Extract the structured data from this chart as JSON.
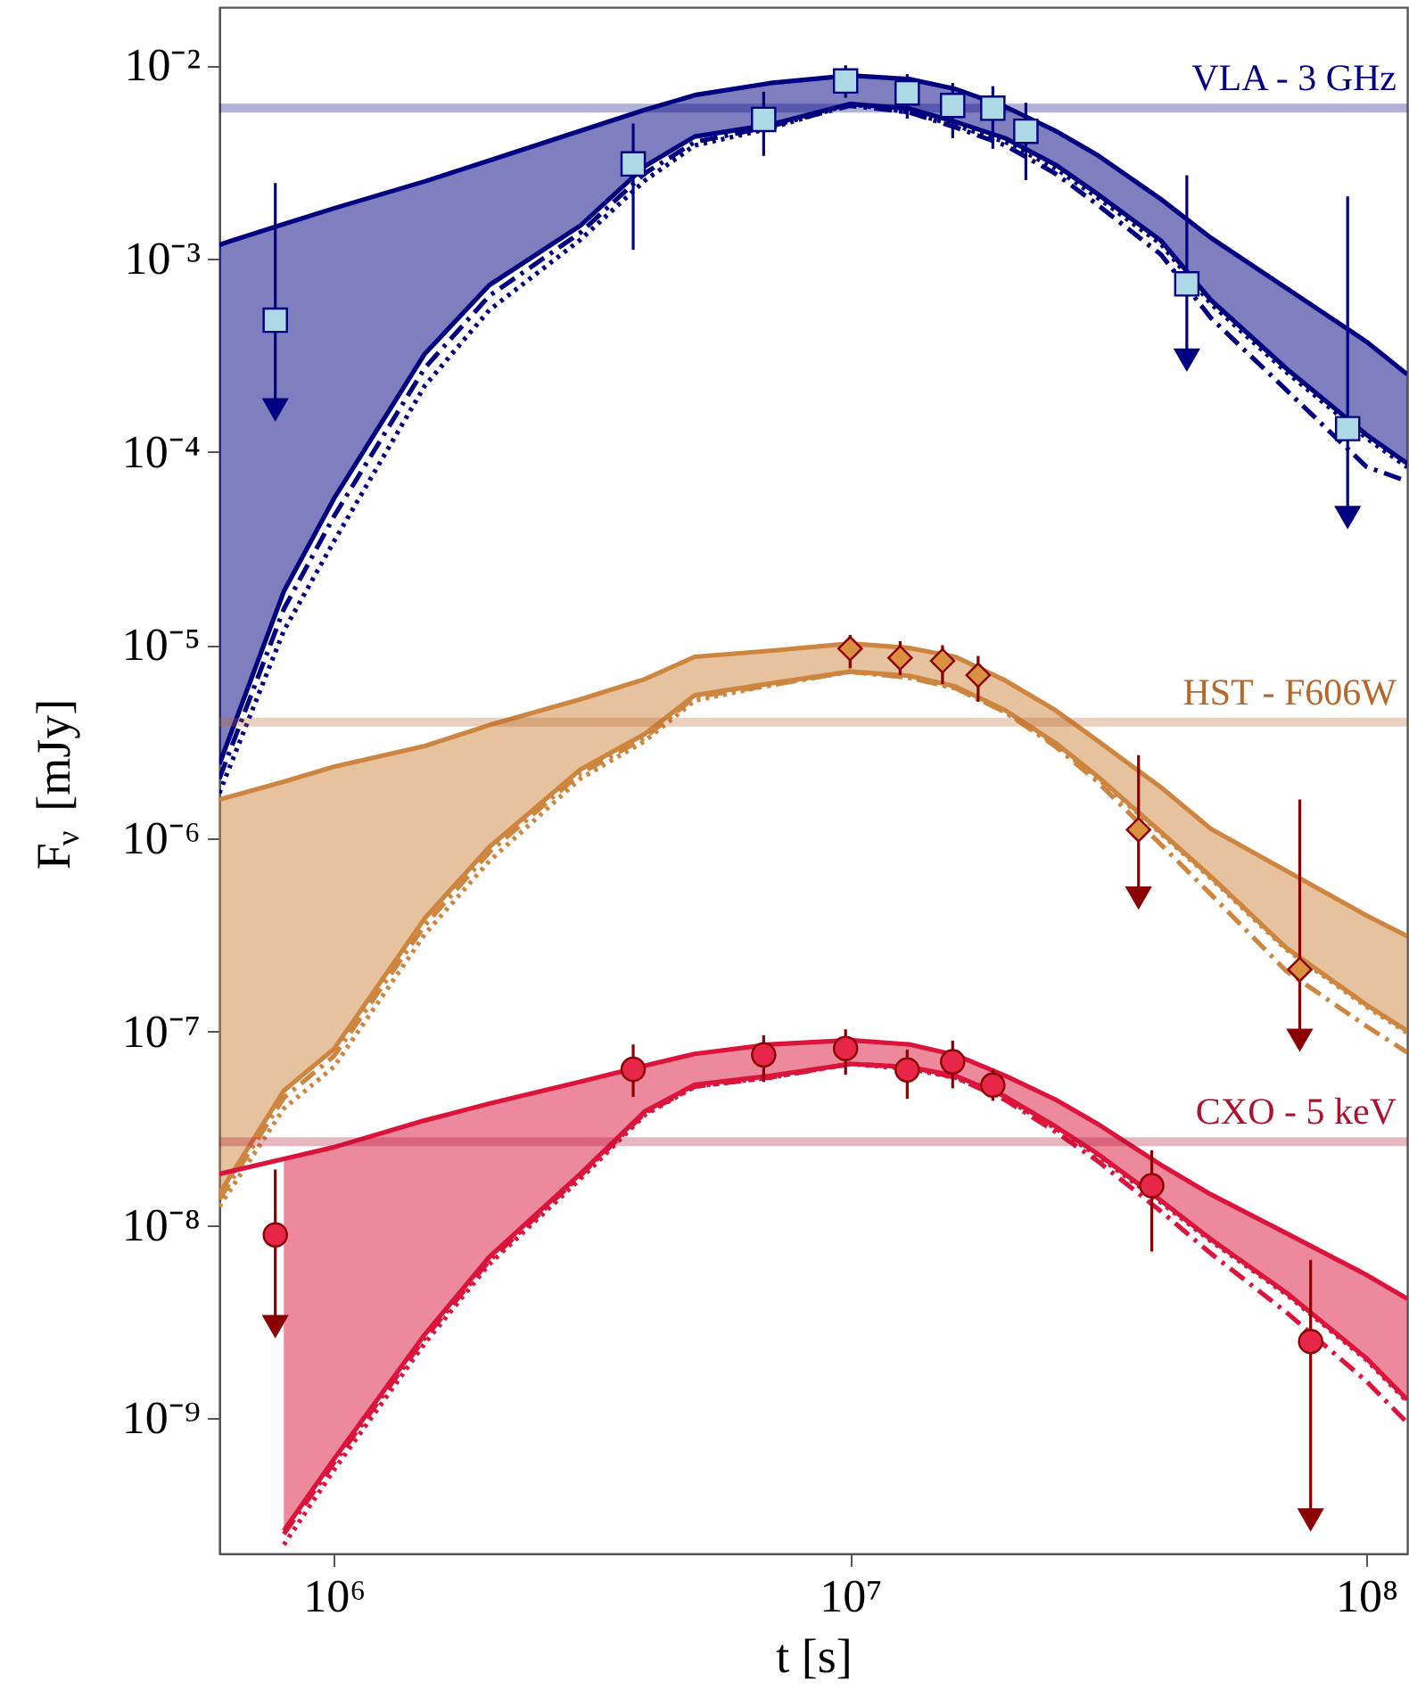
{
  "chart_data": {
    "type": "line",
    "xlabel": "t [s]",
    "ylabel": "F$_{ν}$ [mJy]",
    "log": "xy",
    "xlim": [
      600000,
      120000000
    ],
    "ylim": [
      2e-10,
      0.02
    ],
    "xticks": [
      {
        "value": 1000000,
        "label": "10⁶"
      },
      {
        "value": 10000000,
        "label": "10⁷"
      },
      {
        "value": 100000000,
        "label": "10⁸"
      }
    ],
    "yticks": [
      {
        "value": 1e-09,
        "label": "10⁻⁹"
      },
      {
        "value": 1e-08,
        "label": "10⁻⁸"
      },
      {
        "value": 1e-07,
        "label": "10⁻⁷"
      },
      {
        "value": 1e-06,
        "label": "10⁻⁶"
      },
      {
        "value": 1e-05,
        "label": "10⁻⁵"
      },
      {
        "value": 0.0001,
        "label": "10⁻⁴"
      },
      {
        "value": 0.001,
        "label": "10⁻³"
      },
      {
        "value": 0.01,
        "label": "10⁻²"
      }
    ],
    "x": [
      600000,
      800000,
      1000000,
      1500000,
      2000000,
      3000000,
      4000000,
      5000000,
      7000000,
      10000000,
      13000000,
      16000000,
      20000000,
      25000000,
      30000000,
      40000000,
      50000000,
      70000000,
      100000000,
      120000000
    ],
    "ref_lines": [
      {
        "axis": "y",
        "value": 0.006,
        "label": "VLA - 3 GHz",
        "color": "#000080"
      },
      {
        "axis": "y",
        "value": 4e-06,
        "label": "HST - F606W",
        "color": "#b8662a"
      },
      {
        "axis": "y",
        "value": 2.7e-08,
        "label": "CXO - 5 keV",
        "color": "#b01030"
      }
    ],
    "series": [
      {
        "color": "#000080",
        "line_style": "solid",
        "values": [
          0.00118,
          0.00151,
          0.00182,
          0.00251,
          0.00322,
          0.00458,
          0.00588,
          0.00701,
          0.00809,
          0.00886,
          0.00849,
          0.00754,
          0.0061,
          0.00458,
          0.00346,
          0.00203,
          0.00128,
          0.000703,
          0.000372,
          0.000252
        ]
      },
      {
        "color": "#000080",
        "line_style": "solid",
        "values": [
          2.42e-06,
          1.9e-05,
          5.73e-05,
          0.000322,
          0.000729,
          0.00148,
          0.003,
          0.00428,
          0.00493,
          0.00631,
          0.00597,
          0.0051,
          0.00419,
          0.00306,
          0.00218,
          0.00124,
          0.00061,
          0.00027,
          0.000123,
          8.71e-05
        ],
        "lower": [
          2.42e-06,
          1.9e-05,
          5.73e-05,
          0.000322,
          0.000729,
          0.00148,
          0.003,
          0.00428,
          0.00493,
          0.00631,
          0.00597,
          0.0051,
          0.00419,
          0.00306,
          0.00218,
          0.00124,
          0.00061,
          0.00027,
          0.000123,
          8.71e-05
        ],
        "upper": [
          0.00118,
          0.00151,
          0.00182,
          0.00251,
          0.00322,
          0.00458,
          0.00588,
          0.00701,
          0.00809,
          0.00886,
          0.00849,
          0.00754,
          0.0061,
          0.00458,
          0.00346,
          0.00203,
          0.00128,
          0.000703,
          0.000372,
          0.000252
        ]
      },
      {
        "color": "#000080",
        "line_style": "dashdot",
        "values": [
          2.04e-06,
          1.54e-05,
          4.64e-05,
          0.000272,
          0.000642,
          0.00136,
          0.00276,
          0.00401,
          0.00483,
          0.00618,
          0.00572,
          0.00478,
          0.00385,
          0.00275,
          0.00192,
          0.00105,
          0.000493,
          0.000209,
          8.39e-05,
          7.05e-05
        ]
      },
      {
        "color": "#000080",
        "line_style": "dotted",
        "values": [
          1.72e-06,
          1.19e-05,
          3.44e-05,
          0.00022,
          0.000542,
          0.00125,
          0.00253,
          0.00385,
          0.00472,
          0.00631,
          0.00572,
          0.00489,
          0.00401,
          0.00293,
          0.00209,
          0.00119,
          0.000584,
          0.000259,
          0.000118,
          8.34e-05
        ]
      },
      {
        "color": "#cd853f",
        "line_style": "solid",
        "values": [
          1.59e-06,
          1.97e-06,
          2.35e-06,
          3.01e-06,
          3.86e-06,
          5.24e-06,
          6.67e-06,
          8.71e-06,
          9.36e-06,
          1.02e-05,
          9.68e-06,
          8.71e-06,
          6.56e-06,
          4.6e-06,
          3.24e-06,
          1.84e-06,
          1.12e-06,
          6.81e-07,
          4e-07,
          3.13e-07
        ]
      },
      {
        "color": "#cd853f",
        "line_style": "solid",
        "values": [
          1.45e-08,
          4.96e-08,
          8.14e-08,
          3.87e-07,
          9.05e-07,
          2.27e-06,
          3.47e-06,
          5.51e-06,
          6.34e-06,
          7.3e-06,
          6.95e-06,
          6.12e-06,
          4.6e-06,
          3.12e-06,
          2.12e-06,
          1.08e-06,
          6.35e-07,
          2.72e-07,
          1.38e-07,
          1.01e-07
        ],
        "lower": [
          1.45e-08,
          4.96e-08,
          8.14e-08,
          3.87e-07,
          9.05e-07,
          2.27e-06,
          3.47e-06,
          5.51e-06,
          6.34e-06,
          7.3e-06,
          6.95e-06,
          6.12e-06,
          4.6e-06,
          3.12e-06,
          2.12e-06,
          1.08e-06,
          6.35e-07,
          2.72e-07,
          1.38e-07,
          1.01e-07
        ],
        "upper": [
          1.59e-06,
          1.97e-06,
          2.35e-06,
          3.01e-06,
          3.86e-06,
          5.24e-06,
          6.67e-06,
          8.71e-06,
          9.36e-06,
          1.02e-05,
          9.68e-06,
          8.71e-06,
          6.56e-06,
          4.6e-06,
          3.24e-06,
          1.84e-06,
          1.12e-06,
          6.81e-07,
          4e-07,
          3.13e-07
        ]
      },
      {
        "color": "#cd853f",
        "line_style": "dashdot",
        "values": [
          1.36e-08,
          4.56e-08,
          7.48e-08,
          3.56e-07,
          8.49e-07,
          2.17e-06,
          3.32e-06,
          5.39e-06,
          6.21e-06,
          7.3e-06,
          6.8e-06,
          5.99e-06,
          4.5e-06,
          2.99e-06,
          1.99e-06,
          9.31e-07,
          5.14e-07,
          2.06e-07,
          1.07e-07,
          7.83e-08
        ]
      },
      {
        "color": "#cd853f",
        "line_style": "dotted",
        "values": [
          1.25e-08,
          4.01e-08,
          6.59e-08,
          3.2e-07,
          7.64e-07,
          2.04e-06,
          3.19e-06,
          5.17e-06,
          6.21e-06,
          7.3e-06,
          6.8e-06,
          5.99e-06,
          4.5e-06,
          3.05e-06,
          2.08e-06,
          1.06e-06,
          6.22e-07,
          2.66e-07,
          1.35e-07,
          9.89e-08
        ]
      },
      {
        "color": "#dc143c",
        "line_style": "solid",
        "values": [
          1.84e-08,
          2.2e-08,
          2.53e-08,
          3.48e-08,
          4.25e-08,
          5.52e-08,
          6.68e-08,
          7.69e-08,
          8.61e-08,
          9.06e-08,
          8.61e-08,
          7.59e-08,
          5.92e-08,
          4.46e-08,
          3.37e-08,
          2.05e-08,
          1.44e-08,
          9.08e-09,
          5.53e-09,
          4.16e-09
        ]
      },
      {
        "color": "#dc143c",
        "line_style": "solid",
        "values": [
          null,
          2.63e-10,
          6.15e-10,
          2.72e-09,
          6.84e-09,
          1.84e-08,
          3.87e-08,
          5.32e-08,
          5.92e-08,
          6.82e-08,
          6.58e-08,
          5.92e-08,
          4.62e-08,
          3.24e-08,
          2.36e-08,
          1.34e-08,
          8.45e-09,
          4.47e-09,
          2.05e-09,
          1.25e-09
        ],
        "lower": [
          null,
          2.63e-10,
          6.15e-10,
          2.72e-09,
          6.84e-09,
          1.84e-08,
          3.87e-08,
          5.32e-08,
          5.92e-08,
          6.82e-08,
          6.58e-08,
          5.92e-08,
          4.62e-08,
          3.24e-08,
          2.36e-08,
          1.34e-08,
          8.45e-09,
          4.47e-09,
          2.05e-09,
          1.25e-09
        ],
        "upper": [
          null,
          2.2e-08,
          2.53e-08,
          3.48e-08,
          4.25e-08,
          5.52e-08,
          6.68e-08,
          7.69e-08,
          8.61e-08,
          9.06e-08,
          8.61e-08,
          7.59e-08,
          5.92e-08,
          4.46e-08,
          3.37e-08,
          2.05e-08,
          1.44e-08,
          9.08e-09,
          5.53e-09,
          4.16e-09
        ]
      },
      {
        "color": "#dc143c",
        "line_style": "dashdot",
        "values": [
          null,
          2.52e-10,
          5.89e-10,
          2.61e-09,
          6.55e-09,
          1.8e-08,
          3.79e-08,
          5.21e-08,
          5.8e-08,
          6.82e-08,
          6.58e-08,
          5.8e-08,
          4.43e-08,
          3.04e-08,
          2.17e-08,
          1.18e-08,
          7.13e-09,
          3.54e-09,
          1.56e-09,
          9.49e-10
        ]
      },
      {
        "color": "#dc143c",
        "line_style": "dotted",
        "values": [
          null,
          2.22e-10,
          5.41e-10,
          2.45e-09,
          6.29e-09,
          1.73e-08,
          3.71e-08,
          5.21e-08,
          5.8e-08,
          6.82e-08,
          6.44e-08,
          5.8e-08,
          4.52e-08,
          3.17e-08,
          2.31e-08,
          1.31e-08,
          8.27e-09,
          4.38e-09,
          2.01e-09,
          1.22e-09
        ]
      },
      {
        "type": "scatter",
        "marker": "square",
        "color": "#000080",
        "colors": [
          "#add8e6",
          "#add8e6",
          "#add8e6",
          "#add8e6",
          "#add8e6",
          "#add8e6",
          "#add8e6",
          "#add8e6",
          "#add8e6",
          "#add8e6"
        ],
        "x": [
          770000,
          3800000,
          6800000,
          9800000,
          12900000,
          15800000,
          18900000,
          21900000,
          44900000,
          92000000
        ],
        "values": [
          0.00048,
          0.00309,
          0.00525,
          0.0083,
          0.0072,
          0.0062,
          0.006,
          0.00456,
          0.00074,
          0.000132
        ],
        "errors": [
          [
            0.000166,
            0.00246
          ],
          [
            0.00111,
            0.005
          ],
          [
            0.0034,
            0.0073
          ],
          [
            0.0068,
            0.01
          ],
          [
            0.0053,
            0.009
          ],
          [
            0.0042,
            0.0081
          ],
          [
            0.0037,
            0.0078
          ],
          [
            0.00255,
            0.0064
          ],
          [
            0.0003,
            0.0027
          ],
          [
            4.6e-05,
            0.0021
          ]
        ]
      },
      {
        "type": "scatter",
        "marker": "triangle",
        "color": "#000080",
        "x": [
          770000,
          44900000,
          92000000
        ],
        "values": [
          0.000166,
          0.0003,
          4.6e-05
        ]
      },
      {
        "type": "scatter",
        "marker": "diamond",
        "color": "#8b0000",
        "colors": [
          "#d9913f",
          "#d9913f",
          "#d9913f",
          "#d9913f",
          "#d9913f",
          "#d9913f"
        ],
        "x": [
          10000000,
          12500000,
          15100000,
          17700000,
          36200000,
          74300000
        ],
        "values": [
          9.6e-06,
          8.6e-06,
          8.3e-06,
          7e-06,
          1.11e-06,
          2.1e-07
        ],
        "errors": [
          [
            7.6e-06,
            1.13e-05
          ],
          [
            7e-06,
            1.05e-05
          ],
          [
            6.3e-06,
            1e-05
          ],
          [
            5.1e-06,
            8.8e-06
          ],
          [
            4.95e-07,
            2.7e-06
          ],
          [
            9.1e-08,
            1.59e-06
          ]
        ]
      },
      {
        "type": "scatter",
        "marker": "triangle",
        "color": "#8b0000",
        "x": [
          36200000,
          74300000
        ],
        "values": [
          4.95e-07,
          9.1e-08
        ]
      },
      {
        "type": "scatter",
        "marker": "circle",
        "color": "#8b0000",
        "colors": [
          "#e8264a",
          "#e8264a",
          "#e8264a",
          "#e8264a",
          "#e8264a",
          "#e8264a",
          "#e8264a",
          "#e8264a",
          "#e8264a"
        ],
        "x": [
          770000,
          3800000,
          6800000,
          9800000,
          12900000,
          15800000,
          18900000,
          38400000,
          78000000
        ],
        "values": [
          8.9e-09,
          6.4e-08,
          7.6e-08,
          8.2e-08,
          6.35e-08,
          7e-08,
          5.3e-08,
          1.6e-08,
          2.5e-09
        ],
        "errors": [
          [
            3e-09,
            1.94e-08
          ],
          [
            4.6e-08,
            8.6e-08
          ],
          [
            5.5e-08,
            9.6e-08
          ],
          [
            6e-08,
            1.03e-07
          ],
          [
            4.5e-08,
            8.1e-08
          ],
          [
            5.1e-08,
            9e-08
          ],
          [
            4.4e-08,
            6.4e-08
          ],
          [
            7.3e-09,
            2.44e-08
          ],
          [
            3e-10,
            6.6e-09
          ]
        ]
      },
      {
        "type": "scatter",
        "marker": "triangle",
        "color": "#8b0000",
        "x": [
          770000,
          78000000
        ],
        "values": [
          3e-09,
          3e-10
        ]
      }
    ]
  }
}
